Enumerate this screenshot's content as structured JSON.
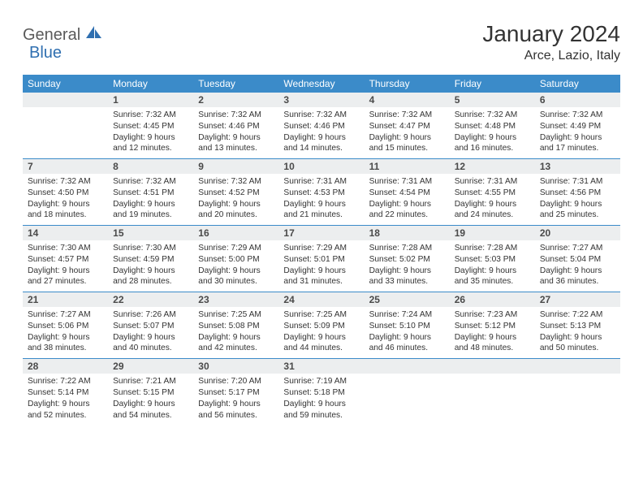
{
  "logo": {
    "general": "General",
    "blue": "Blue"
  },
  "title": "January 2024",
  "location": "Arce, Lazio, Italy",
  "colors": {
    "header_bg": "#3b8bc9",
    "header_text": "#ffffff",
    "daynum_bg": "#eceeef",
    "border": "#3b8bc9",
    "logo_gray": "#5a5a5a",
    "logo_blue": "#2f6fb0"
  },
  "weekdays": [
    "Sunday",
    "Monday",
    "Tuesday",
    "Wednesday",
    "Thursday",
    "Friday",
    "Saturday"
  ],
  "weeks": [
    [
      {
        "num": "",
        "lines": []
      },
      {
        "num": "1",
        "lines": [
          "Sunrise: 7:32 AM",
          "Sunset: 4:45 PM",
          "Daylight: 9 hours",
          "and 12 minutes."
        ]
      },
      {
        "num": "2",
        "lines": [
          "Sunrise: 7:32 AM",
          "Sunset: 4:46 PM",
          "Daylight: 9 hours",
          "and 13 minutes."
        ]
      },
      {
        "num": "3",
        "lines": [
          "Sunrise: 7:32 AM",
          "Sunset: 4:46 PM",
          "Daylight: 9 hours",
          "and 14 minutes."
        ]
      },
      {
        "num": "4",
        "lines": [
          "Sunrise: 7:32 AM",
          "Sunset: 4:47 PM",
          "Daylight: 9 hours",
          "and 15 minutes."
        ]
      },
      {
        "num": "5",
        "lines": [
          "Sunrise: 7:32 AM",
          "Sunset: 4:48 PM",
          "Daylight: 9 hours",
          "and 16 minutes."
        ]
      },
      {
        "num": "6",
        "lines": [
          "Sunrise: 7:32 AM",
          "Sunset: 4:49 PM",
          "Daylight: 9 hours",
          "and 17 minutes."
        ]
      }
    ],
    [
      {
        "num": "7",
        "lines": [
          "Sunrise: 7:32 AM",
          "Sunset: 4:50 PM",
          "Daylight: 9 hours",
          "and 18 minutes."
        ]
      },
      {
        "num": "8",
        "lines": [
          "Sunrise: 7:32 AM",
          "Sunset: 4:51 PM",
          "Daylight: 9 hours",
          "and 19 minutes."
        ]
      },
      {
        "num": "9",
        "lines": [
          "Sunrise: 7:32 AM",
          "Sunset: 4:52 PM",
          "Daylight: 9 hours",
          "and 20 minutes."
        ]
      },
      {
        "num": "10",
        "lines": [
          "Sunrise: 7:31 AM",
          "Sunset: 4:53 PM",
          "Daylight: 9 hours",
          "and 21 minutes."
        ]
      },
      {
        "num": "11",
        "lines": [
          "Sunrise: 7:31 AM",
          "Sunset: 4:54 PM",
          "Daylight: 9 hours",
          "and 22 minutes."
        ]
      },
      {
        "num": "12",
        "lines": [
          "Sunrise: 7:31 AM",
          "Sunset: 4:55 PM",
          "Daylight: 9 hours",
          "and 24 minutes."
        ]
      },
      {
        "num": "13",
        "lines": [
          "Sunrise: 7:31 AM",
          "Sunset: 4:56 PM",
          "Daylight: 9 hours",
          "and 25 minutes."
        ]
      }
    ],
    [
      {
        "num": "14",
        "lines": [
          "Sunrise: 7:30 AM",
          "Sunset: 4:57 PM",
          "Daylight: 9 hours",
          "and 27 minutes."
        ]
      },
      {
        "num": "15",
        "lines": [
          "Sunrise: 7:30 AM",
          "Sunset: 4:59 PM",
          "Daylight: 9 hours",
          "and 28 minutes."
        ]
      },
      {
        "num": "16",
        "lines": [
          "Sunrise: 7:29 AM",
          "Sunset: 5:00 PM",
          "Daylight: 9 hours",
          "and 30 minutes."
        ]
      },
      {
        "num": "17",
        "lines": [
          "Sunrise: 7:29 AM",
          "Sunset: 5:01 PM",
          "Daylight: 9 hours",
          "and 31 minutes."
        ]
      },
      {
        "num": "18",
        "lines": [
          "Sunrise: 7:28 AM",
          "Sunset: 5:02 PM",
          "Daylight: 9 hours",
          "and 33 minutes."
        ]
      },
      {
        "num": "19",
        "lines": [
          "Sunrise: 7:28 AM",
          "Sunset: 5:03 PM",
          "Daylight: 9 hours",
          "and 35 minutes."
        ]
      },
      {
        "num": "20",
        "lines": [
          "Sunrise: 7:27 AM",
          "Sunset: 5:04 PM",
          "Daylight: 9 hours",
          "and 36 minutes."
        ]
      }
    ],
    [
      {
        "num": "21",
        "lines": [
          "Sunrise: 7:27 AM",
          "Sunset: 5:06 PM",
          "Daylight: 9 hours",
          "and 38 minutes."
        ]
      },
      {
        "num": "22",
        "lines": [
          "Sunrise: 7:26 AM",
          "Sunset: 5:07 PM",
          "Daylight: 9 hours",
          "and 40 minutes."
        ]
      },
      {
        "num": "23",
        "lines": [
          "Sunrise: 7:25 AM",
          "Sunset: 5:08 PM",
          "Daylight: 9 hours",
          "and 42 minutes."
        ]
      },
      {
        "num": "24",
        "lines": [
          "Sunrise: 7:25 AM",
          "Sunset: 5:09 PM",
          "Daylight: 9 hours",
          "and 44 minutes."
        ]
      },
      {
        "num": "25",
        "lines": [
          "Sunrise: 7:24 AM",
          "Sunset: 5:10 PM",
          "Daylight: 9 hours",
          "and 46 minutes."
        ]
      },
      {
        "num": "26",
        "lines": [
          "Sunrise: 7:23 AM",
          "Sunset: 5:12 PM",
          "Daylight: 9 hours",
          "and 48 minutes."
        ]
      },
      {
        "num": "27",
        "lines": [
          "Sunrise: 7:22 AM",
          "Sunset: 5:13 PM",
          "Daylight: 9 hours",
          "and 50 minutes."
        ]
      }
    ],
    [
      {
        "num": "28",
        "lines": [
          "Sunrise: 7:22 AM",
          "Sunset: 5:14 PM",
          "Daylight: 9 hours",
          "and 52 minutes."
        ]
      },
      {
        "num": "29",
        "lines": [
          "Sunrise: 7:21 AM",
          "Sunset: 5:15 PM",
          "Daylight: 9 hours",
          "and 54 minutes."
        ]
      },
      {
        "num": "30",
        "lines": [
          "Sunrise: 7:20 AM",
          "Sunset: 5:17 PM",
          "Daylight: 9 hours",
          "and 56 minutes."
        ]
      },
      {
        "num": "31",
        "lines": [
          "Sunrise: 7:19 AM",
          "Sunset: 5:18 PM",
          "Daylight: 9 hours",
          "and 59 minutes."
        ]
      },
      {
        "num": "",
        "lines": []
      },
      {
        "num": "",
        "lines": []
      },
      {
        "num": "",
        "lines": []
      }
    ]
  ]
}
